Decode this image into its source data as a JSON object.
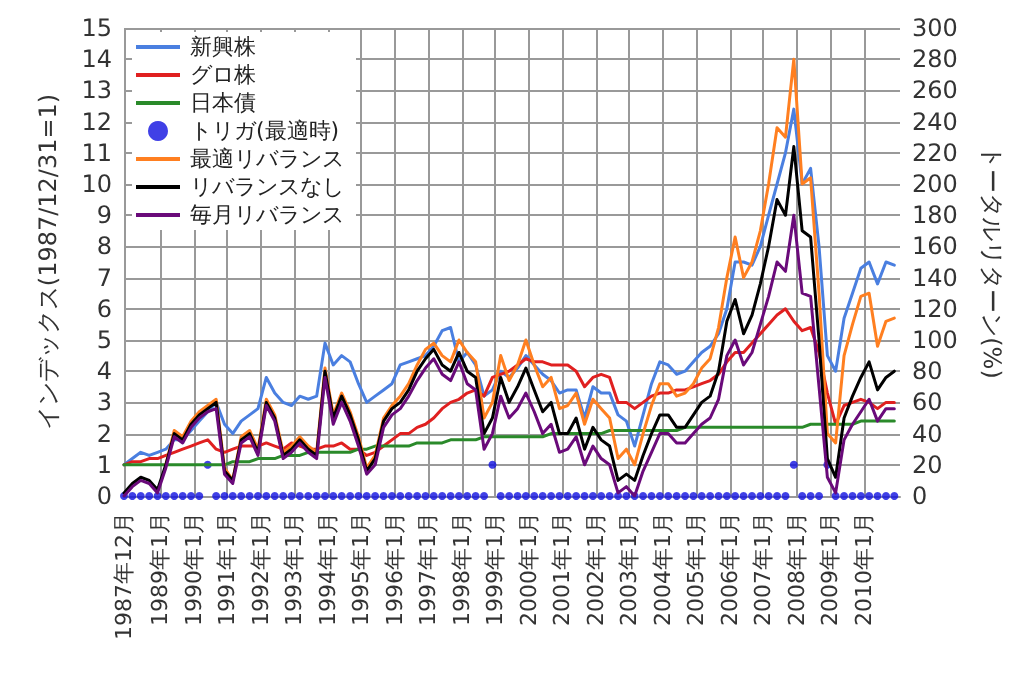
{
  "chart_data": {
    "type": "line",
    "ylabel": "インデックス(1987/12/31=1)",
    "y2label": "トータルリターン(%)",
    "x": [
      "1987-12",
      "1988-03",
      "1988-06",
      "1988-09",
      "1988-12",
      "1989-03",
      "1989-06",
      "1989-09",
      "1989-12",
      "1990-03",
      "1990-06",
      "1990-09",
      "1990-12",
      "1991-03",
      "1991-06",
      "1991-09",
      "1991-12",
      "1992-03",
      "1992-06",
      "1992-09",
      "1992-12",
      "1993-03",
      "1993-06",
      "1993-09",
      "1993-12",
      "1994-03",
      "1994-06",
      "1994-09",
      "1994-12",
      "1995-03",
      "1995-06",
      "1995-09",
      "1995-12",
      "1996-03",
      "1996-06",
      "1996-09",
      "1996-12",
      "1997-03",
      "1997-06",
      "1997-09",
      "1997-12",
      "1998-03",
      "1998-06",
      "1998-09",
      "1998-12",
      "1999-03",
      "1999-06",
      "1999-09",
      "1999-12",
      "2000-03",
      "2000-06",
      "2000-09",
      "2000-12",
      "2001-03",
      "2001-06",
      "2001-09",
      "2001-12",
      "2002-03",
      "2002-06",
      "2002-09",
      "2002-12",
      "2003-03",
      "2003-06",
      "2003-09",
      "2003-12",
      "2004-03",
      "2004-06",
      "2004-09",
      "2004-12",
      "2005-03",
      "2005-06",
      "2005-09",
      "2005-12",
      "2006-03",
      "2006-06",
      "2006-09",
      "2006-12",
      "2007-03",
      "2007-06",
      "2007-09",
      "2007-12",
      "2008-03",
      "2008-06",
      "2008-09",
      "2008-12",
      "2009-03",
      "2009-06",
      "2009-09",
      "2009-12",
      "2010-03",
      "2010-06",
      "2010-09",
      "2010-12"
    ],
    "xlim": [
      "1987-12",
      "2011-02"
    ],
    "xticks": [
      {
        "value": "1987-12",
        "label": "1987年12月"
      },
      {
        "value": "1989-01",
        "label": "1989年1月"
      },
      {
        "value": "1990-01",
        "label": "1990年1月"
      },
      {
        "value": "1991-01",
        "label": "1991年1月"
      },
      {
        "value": "1992-01",
        "label": "1992年1月"
      },
      {
        "value": "1993-01",
        "label": "1993年1月"
      },
      {
        "value": "1994-01",
        "label": "1994年1月"
      },
      {
        "value": "1995-01",
        "label": "1995年1月"
      },
      {
        "value": "1996-01",
        "label": "1996年1月"
      },
      {
        "value": "1997-01",
        "label": "1997年1月"
      },
      {
        "value": "1998-01",
        "label": "1998年1月"
      },
      {
        "value": "1999-01",
        "label": "1999年1月"
      },
      {
        "value": "2000-01",
        "label": "2000年1月"
      },
      {
        "value": "2001-01",
        "label": "2001年1月"
      },
      {
        "value": "2002-01",
        "label": "2002年1月"
      },
      {
        "value": "2003-01",
        "label": "2003年1月"
      },
      {
        "value": "2004-01",
        "label": "2004年1月"
      },
      {
        "value": "2005-01",
        "label": "2005年1月"
      },
      {
        "value": "2006-01",
        "label": "2006年1月"
      },
      {
        "value": "2007-01",
        "label": "2007年1月"
      },
      {
        "value": "2008-01",
        "label": "2008年1月"
      },
      {
        "value": "2009-01",
        "label": "2009年1月"
      },
      {
        "value": "2010-01",
        "label": "2010年1月"
      }
    ],
    "ylim": [
      0,
      15
    ],
    "yticks": [
      0,
      1,
      2,
      3,
      4,
      5,
      6,
      7,
      8,
      9,
      10,
      11,
      12,
      13,
      14,
      15
    ],
    "y2lim": [
      0,
      300
    ],
    "y2ticks": [
      0,
      20,
      40,
      60,
      80,
      100,
      120,
      140,
      160,
      180,
      200,
      220,
      240,
      260,
      280,
      300
    ],
    "grid": true,
    "legend": "top left",
    "marker": "none",
    "line_style": "solid",
    "series": [
      {
        "name": "新興株",
        "color": "#4a7fe0",
        "values": [
          1.0,
          1.2,
          1.4,
          1.3,
          1.4,
          1.5,
          1.8,
          1.8,
          2.1,
          2.4,
          2.7,
          3.0,
          2.3,
          2.0,
          2.4,
          2.6,
          2.8,
          3.8,
          3.3,
          3.0,
          2.9,
          3.2,
          3.1,
          3.2,
          4.9,
          4.2,
          4.5,
          4.3,
          3.6,
          3.0,
          3.2,
          3.4,
          3.6,
          4.2,
          4.3,
          4.4,
          4.5,
          4.8,
          5.3,
          5.4,
          4.3,
          4.6,
          4.2,
          3.2,
          3.4,
          4.0,
          3.8,
          4.1,
          4.5,
          4.2,
          3.9,
          3.7,
          3.3,
          3.4,
          3.4,
          2.5,
          3.5,
          3.3,
          3.3,
          2.6,
          2.4,
          1.6,
          2.6,
          3.6,
          4.3,
          4.2,
          3.9,
          4.0,
          4.3,
          4.6,
          4.8,
          5.2,
          6.0,
          7.5,
          7.5,
          7.4,
          8.0,
          9.0,
          10.0,
          11.0,
          12.4,
          10.0,
          10.5,
          8.0,
          4.5,
          4.0,
          5.7,
          6.5,
          7.3,
          7.5,
          6.8,
          7.5,
          7.4
        ]
      },
      {
        "name": "グロ株",
        "color": "#e02020",
        "values": [
          1.0,
          1.1,
          1.1,
          1.2,
          1.2,
          1.3,
          1.4,
          1.5,
          1.6,
          1.7,
          1.8,
          1.5,
          1.4,
          1.5,
          1.6,
          1.6,
          1.6,
          1.7,
          1.6,
          1.5,
          1.7,
          1.6,
          1.5,
          1.5,
          1.6,
          1.6,
          1.7,
          1.5,
          1.5,
          1.3,
          1.4,
          1.6,
          1.8,
          2.0,
          2.0,
          2.2,
          2.3,
          2.5,
          2.8,
          3.0,
          3.1,
          3.3,
          3.4,
          3.2,
          3.8,
          3.9,
          4.0,
          4.2,
          4.4,
          4.3,
          4.3,
          4.2,
          4.2,
          4.2,
          4.0,
          3.5,
          3.8,
          3.9,
          3.8,
          3.0,
          3.0,
          2.8,
          3.0,
          3.2,
          3.3,
          3.3,
          3.4,
          3.4,
          3.5,
          3.6,
          3.7,
          3.9,
          4.3,
          4.6,
          4.6,
          4.9,
          5.2,
          5.5,
          5.8,
          6.0,
          5.6,
          5.3,
          5.4,
          4.6,
          3.3,
          2.3,
          2.9,
          3.0,
          3.1,
          3.0,
          2.8,
          3.0,
          3.0
        ]
      },
      {
        "name": "日本債",
        "color": "#2a8a2a",
        "values": [
          1.0,
          1.0,
          1.0,
          1.0,
          1.0,
          1.0,
          1.0,
          1.0,
          1.0,
          1.0,
          1.0,
          1.0,
          1.0,
          1.1,
          1.1,
          1.1,
          1.2,
          1.2,
          1.2,
          1.3,
          1.3,
          1.3,
          1.4,
          1.4,
          1.4,
          1.4,
          1.4,
          1.4,
          1.5,
          1.5,
          1.6,
          1.6,
          1.6,
          1.6,
          1.6,
          1.7,
          1.7,
          1.7,
          1.7,
          1.8,
          1.8,
          1.8,
          1.8,
          1.9,
          1.9,
          1.9,
          1.9,
          1.9,
          1.9,
          1.9,
          1.9,
          2.0,
          2.0,
          2.0,
          2.0,
          2.0,
          2.0,
          2.0,
          2.1,
          2.1,
          2.1,
          2.1,
          2.1,
          2.1,
          2.1,
          2.1,
          2.1,
          2.2,
          2.2,
          2.2,
          2.2,
          2.2,
          2.2,
          2.2,
          2.2,
          2.2,
          2.2,
          2.2,
          2.2,
          2.2,
          2.2,
          2.2,
          2.3,
          2.3,
          2.3,
          2.3,
          2.3,
          2.3,
          2.4,
          2.4,
          2.4,
          2.4,
          2.4
        ]
      },
      {
        "name": "トリガ(最適時)",
        "color": "#1010e0",
        "type": "scatter",
        "marker": "circle",
        "values": [
          0,
          0,
          0,
          0,
          0,
          0,
          0,
          0,
          0,
          0,
          1,
          0,
          0,
          0,
          0,
          0,
          0,
          0,
          0,
          0,
          0,
          0,
          0,
          0,
          0,
          0,
          0,
          0,
          0,
          0,
          0,
          0,
          0,
          0,
          0,
          0,
          0,
          0,
          0,
          0,
          0,
          0,
          0,
          0,
          1,
          0,
          0,
          0,
          0,
          0,
          0,
          0,
          0,
          0,
          0,
          0,
          0,
          0,
          0,
          0,
          0,
          0,
          0,
          0,
          0,
          0,
          0,
          0,
          0,
          0,
          0,
          0,
          0,
          0,
          0,
          0,
          0,
          0,
          0,
          0,
          1,
          0,
          0,
          0,
          1,
          0,
          0,
          0,
          0,
          0,
          0,
          0,
          0
        ]
      },
      {
        "name": "最適リバランス",
        "color": "#ff7f20",
        "axis": "y2",
        "values": [
          null,
          null,
          null,
          null,
          null,
          20,
          42,
          38,
          48,
          54,
          58,
          62,
          18,
          10,
          38,
          42,
          30,
          62,
          52,
          28,
          32,
          38,
          32,
          28,
          82,
          52,
          66,
          54,
          38,
          18,
          26,
          50,
          58,
          64,
          72,
          84,
          94,
          98,
          90,
          86,
          100,
          92,
          86,
          50,
          60,
          90,
          74,
          84,
          100,
          84,
          70,
          76,
          56,
          58,
          66,
          46,
          62,
          56,
          50,
          24,
          30,
          20,
          40,
          58,
          72,
          72,
          64,
          66,
          72,
          82,
          88,
          108,
          140,
          166,
          140,
          150,
          170,
          200,
          236,
          230,
          280,
          200,
          204,
          130,
          40,
          34,
          90,
          110,
          128,
          130,
          96,
          112,
          114
        ]
      },
      {
        "name": "リバランスなし",
        "color": "#000000",
        "axis": "y2",
        "values": [
          2,
          8,
          12,
          10,
          4,
          20,
          40,
          36,
          46,
          52,
          56,
          60,
          16,
          10,
          36,
          40,
          28,
          60,
          50,
          26,
          30,
          36,
          30,
          26,
          80,
          50,
          64,
          52,
          36,
          16,
          24,
          48,
          56,
          60,
          68,
          80,
          88,
          94,
          84,
          80,
          92,
          80,
          76,
          40,
          50,
          76,
          60,
          70,
          82,
          68,
          54,
          60,
          40,
          40,
          50,
          30,
          44,
          36,
          32,
          10,
          14,
          10,
          26,
          40,
          52,
          52,
          44,
          44,
          52,
          60,
          64,
          80,
          112,
          126,
          104,
          116,
          136,
          160,
          190,
          180,
          224,
          170,
          166,
          100,
          24,
          12,
          50,
          64,
          76,
          86,
          68,
          76,
          80
        ]
      },
      {
        "name": "毎月リバランス",
        "color": "#6a0a7a",
        "axis": "y2",
        "values": [
          0,
          6,
          10,
          8,
          2,
          18,
          38,
          34,
          44,
          50,
          54,
          56,
          14,
          8,
          34,
          38,
          26,
          58,
          48,
          24,
          28,
          34,
          28,
          24,
          76,
          46,
          60,
          48,
          32,
          14,
          20,
          44,
          52,
          56,
          64,
          74,
          82,
          88,
          78,
          74,
          86,
          72,
          68,
          30,
          40,
          64,
          50,
          56,
          66,
          54,
          40,
          46,
          28,
          30,
          38,
          20,
          32,
          24,
          20,
          2,
          6,
          0,
          16,
          28,
          40,
          40,
          34,
          34,
          40,
          46,
          50,
          62,
          90,
          100,
          84,
          92,
          110,
          128,
          150,
          144,
          180,
          130,
          128,
          70,
          12,
          2,
          36,
          46,
          54,
          62,
          48,
          56,
          56
        ]
      }
    ]
  }
}
